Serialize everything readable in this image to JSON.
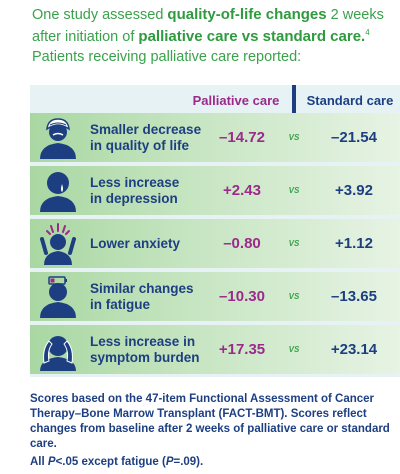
{
  "intro": {
    "line1_a": "One study assessed ",
    "line1_hl": "quality-of-life changes",
    "line1_b": " 2 weeks",
    "line2_a": "after initiation of ",
    "line2_hl": "palliative care vs standard care.",
    "line2_ref": "4",
    "line3": "Patients receiving palliative care reported:"
  },
  "header": {
    "palliative_label": "Palliative care",
    "standard_label": "Standard care"
  },
  "vs_label": "VS",
  "rows": [
    {
      "label_line1": "Smaller decrease",
      "label_line2": "in quality of life",
      "palliative": "–14.72",
      "standard": "–21.54",
      "icon": "person-with-head-wrap-icon"
    },
    {
      "label_line1": "Less increase",
      "label_line2": "in depression",
      "palliative": "+2.43",
      "standard": "+3.92",
      "icon": "crying-person-icon"
    },
    {
      "label_line1": "Lower anxiety",
      "label_line2": "",
      "palliative": "–0.80",
      "standard": "+1.12",
      "icon": "anxious-person-icon"
    },
    {
      "label_line1": "Similar changes",
      "label_line2": "in fatigue",
      "palliative": "–10.30",
      "standard": "–13.65",
      "icon": "tired-person-low-battery-icon"
    },
    {
      "label_line1": "Less increase in",
      "label_line2": "symptom burden",
      "palliative": "+17.35",
      "standard": "+23.14",
      "icon": "person-holding-head-icon"
    }
  ],
  "footnote": "Scores based on the 47-item Functional Assessment of Cancer Therapy–Bone Marrow Transplant (FACT-BMT). Scores reflect changes from baseline after 2 weeks of palliative care or standard care.",
  "footnote2": {
    "a": "All ",
    "p1": "P",
    "b": "<.05 except fatigue (",
    "p2": "P",
    "c": "=.09)."
  },
  "colors": {
    "accent_green": "#3aa24a",
    "palliative_purple": "#9b2a8b",
    "standard_navy": "#1d3f82",
    "table_bg": "#e6f2f4"
  }
}
